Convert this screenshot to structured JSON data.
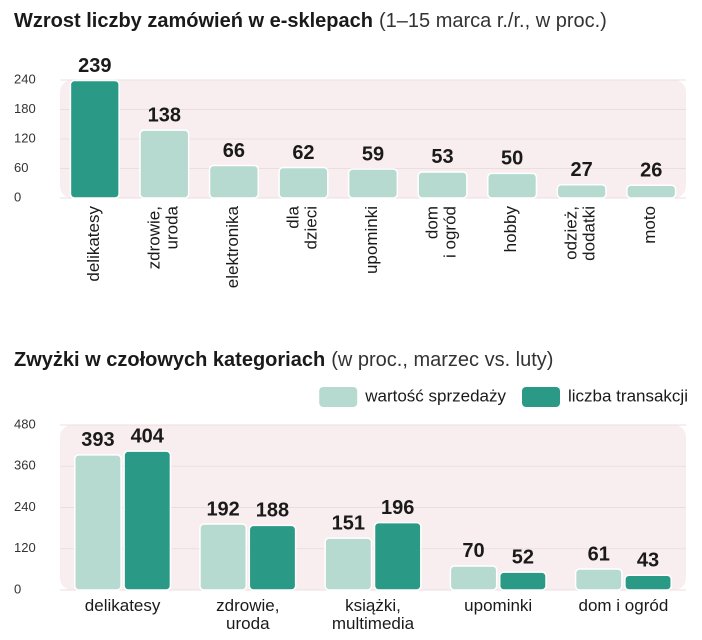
{
  "chart_data": [
    {
      "type": "bar",
      "title": "Wzrost liczby zamówień w e-sklepach",
      "subtitle": "(1–15 marca r./r., w proc.)",
      "categories": [
        "delikatesy",
        "zdrowie,\nuroda",
        "elektronika",
        "dla\ndzieci",
        "upominki",
        "dom\ni ogród",
        "hobby",
        "odzież,\ndodatki",
        "moto"
      ],
      "values": [
        239,
        138,
        66,
        62,
        59,
        53,
        50,
        27,
        26
      ],
      "colors": [
        "#2a9a86",
        "#b6dacf",
        "#b6dacf",
        "#b6dacf",
        "#b6dacf",
        "#b6dacf",
        "#b6dacf",
        "#b6dacf",
        "#b6dacf"
      ],
      "ylim": [
        0,
        240
      ],
      "yticks": [
        0,
        60,
        120,
        180,
        240
      ],
      "grid": true
    },
    {
      "type": "grouped_bar",
      "title": "Zwyżki w czołowych kategoriach",
      "subtitle": "(w proc., marzec vs. luty)",
      "categories": [
        "delikatesy",
        "zdrowie,\nuroda",
        "książki,\nmultimedia",
        "upominki",
        "dom i ogród"
      ],
      "series": [
        {
          "name": "wartość sprzedaży",
          "color": "#b6dacf",
          "values": [
            393,
            192,
            151,
            70,
            61
          ]
        },
        {
          "name": "liczba transakcji",
          "color": "#2a9a86",
          "values": [
            404,
            188,
            196,
            52,
            43
          ]
        }
      ],
      "ylim": [
        0,
        480
      ],
      "yticks": [
        0,
        120,
        240,
        360,
        480
      ],
      "grid": true
    }
  ]
}
